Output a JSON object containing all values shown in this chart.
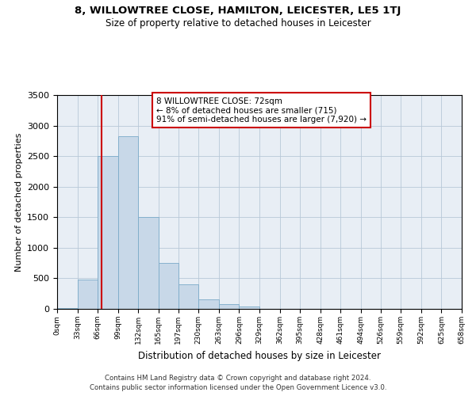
{
  "title": "8, WILLOWTREE CLOSE, HAMILTON, LEICESTER, LE5 1TJ",
  "subtitle": "Size of property relative to detached houses in Leicester",
  "xlabel": "Distribution of detached houses by size in Leicester",
  "ylabel": "Number of detached properties",
  "bar_color": "#c8d8e8",
  "bar_edge_color": "#7aaac8",
  "background_color": "#ffffff",
  "plot_bg_color": "#e8eef5",
  "grid_color": "#b8c8d8",
  "vline_x": 72,
  "vline_color": "#cc0000",
  "bin_edges": [
    0,
    33,
    66,
    99,
    132,
    165,
    197,
    230,
    263,
    296,
    329,
    362,
    395,
    428,
    461,
    494,
    526,
    559,
    592,
    625,
    658
  ],
  "bin_counts": [
    10,
    480,
    2500,
    2820,
    1510,
    750,
    400,
    150,
    80,
    40,
    0,
    0,
    0,
    0,
    0,
    0,
    0,
    0,
    0,
    0
  ],
  "tick_labels": [
    "0sqm",
    "33sqm",
    "66sqm",
    "99sqm",
    "132sqm",
    "165sqm",
    "197sqm",
    "230sqm",
    "263sqm",
    "296sqm",
    "329sqm",
    "362sqm",
    "395sqm",
    "428sqm",
    "461sqm",
    "494sqm",
    "526sqm",
    "559sqm",
    "592sqm",
    "625sqm",
    "658sqm"
  ],
  "ylim": [
    0,
    3500
  ],
  "xlim": [
    0,
    658
  ],
  "annotation_text": "8 WILLOWTREE CLOSE: 72sqm\n← 8% of detached houses are smaller (715)\n91% of semi-detached houses are larger (7,920) →",
  "annotation_box_color": "#ffffff",
  "annotation_box_edge": "#cc0000",
  "footnote1": "Contains HM Land Registry data © Crown copyright and database right 2024.",
  "footnote2": "Contains public sector information licensed under the Open Government Licence v3.0."
}
